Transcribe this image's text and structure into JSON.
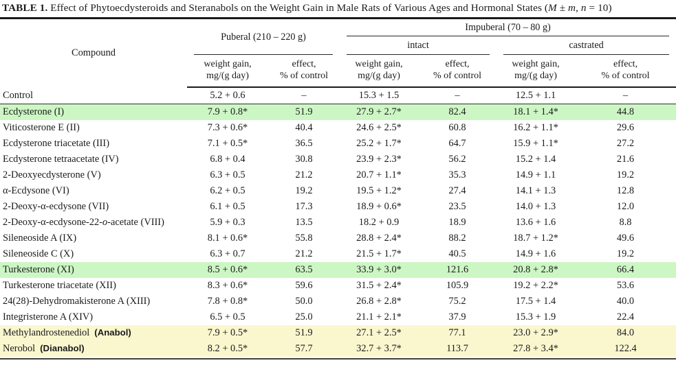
{
  "caption": {
    "label": "TABLE 1.",
    "parts": [
      "Effect of Phytoecdysteroids and Steranabols on the Weight Gain in Male Rats of Various Ages and Hormonal States (",
      "M",
      " ± ",
      "m",
      ", ",
      "n",
      " = 10)"
    ]
  },
  "colors": {
    "highlight_green": "#cdf6c5",
    "highlight_yellow": "#faf7cf",
    "rule": "#191919"
  },
  "table": {
    "headers": {
      "compound": "Compound",
      "puberal": "Puberal (210 – 220 g)",
      "impuberal": "Impuberal (70 – 80 g)",
      "intact": "intact",
      "castrated": "castrated",
      "wg1": "weight gain,",
      "wg2": "mg/(g day)",
      "eff1": "effect,",
      "eff2": "% of control"
    },
    "rows": [
      {
        "name": [
          {
            "t": "Control",
            "s": "p"
          }
        ],
        "values": [
          "5.2 + 0.6",
          "–",
          "15.3 + 1.5",
          "–",
          "12.5 + 1.1",
          "–"
        ],
        "highlight": null,
        "rule_below": true
      },
      {
        "name": [
          {
            "t": "Ecdysterone (I)",
            "s": "p"
          }
        ],
        "values": [
          "7.9 + 0.8*",
          "51.9",
          "27.9 + 2.7*",
          "82.4",
          "18.1 + 1.4*",
          "44.8"
        ],
        "highlight": "green",
        "rule_below": false
      },
      {
        "name": [
          {
            "t": "Viticosterone E (II)",
            "s": "p"
          }
        ],
        "values": [
          "7.3 + 0.6*",
          "40.4",
          "24.6 + 2.5*",
          "60.8",
          "16.2 + 1.1*",
          "29.6"
        ],
        "highlight": null,
        "rule_below": false
      },
      {
        "name": [
          {
            "t": "Ecdysterone triacetate (III)",
            "s": "p"
          }
        ],
        "values": [
          "7.1 + 0.5*",
          "36.5",
          "25.2 + 1.7*",
          "64.7",
          "15.9 + 1.1*",
          "27.2"
        ],
        "highlight": null,
        "rule_below": false
      },
      {
        "name": [
          {
            "t": "Ecdysterone tetraacetate (IV)",
            "s": "p"
          }
        ],
        "values": [
          "6.8 + 0.4",
          "30.8",
          "23.9 + 2.3*",
          "56.2",
          "15.2 + 1.4",
          "21.6"
        ],
        "highlight": null,
        "rule_below": false
      },
      {
        "name": [
          {
            "t": "2-Deoxyecdysterone (V)",
            "s": "p"
          }
        ],
        "values": [
          "6.3 + 0.5",
          "21.2",
          "20.7 + 1.1*",
          "35.3",
          "14.9 + 1.1",
          "19.2"
        ],
        "highlight": null,
        "rule_below": false
      },
      {
        "name": [
          {
            "t": "α-Ecdysone (VI)",
            "s": "p"
          }
        ],
        "values": [
          "6.2 + 0.5",
          "19.2",
          "19.5 + 1.2*",
          "27.4",
          "14.1 + 1.3",
          "12.8"
        ],
        "highlight": null,
        "rule_below": false
      },
      {
        "name": [
          {
            "t": "2-Deoxy-α-ecdysone (VII)",
            "s": "p"
          }
        ],
        "values": [
          "6.1 + 0.5",
          "17.3",
          "18.9 + 0.6*",
          "23.5",
          "14.0 + 1.3",
          "12.0"
        ],
        "highlight": null,
        "rule_below": false
      },
      {
        "name": [
          {
            "t": "2-Deoxy-α-ecdysone-22-",
            "s": "p"
          },
          {
            "t": "o",
            "s": "i"
          },
          {
            "t": "-acetate (VIII)",
            "s": "p"
          }
        ],
        "values": [
          "5.9 + 0.3",
          "13.5",
          "18.2 + 0.9",
          "18.9",
          "13.6 + 1.6",
          "8.8"
        ],
        "highlight": null,
        "rule_below": false
      },
      {
        "name": [
          {
            "t": "Sileneoside A (IX)",
            "s": "p"
          }
        ],
        "values": [
          "8.1 + 0.6*",
          "55.8",
          "28.8 + 2.4*",
          "88.2",
          "18.7 + 1.2*",
          "49.6"
        ],
        "highlight": null,
        "rule_below": false
      },
      {
        "name": [
          {
            "t": "Sileneoside C (X)",
            "s": "p"
          }
        ],
        "values": [
          "6.3 + 0.7",
          "21.2",
          "21.5 + 1.7*",
          "40.5",
          "14.9 + 1.6",
          "19.2"
        ],
        "highlight": null,
        "rule_below": false
      },
      {
        "name": [
          {
            "t": "Turkesterone (XI)",
            "s": "p"
          }
        ],
        "values": [
          "8.5 + 0.6*",
          "63.5",
          "33.9 + 3.0*",
          "121.6",
          "20.8 + 2.8*",
          "66.4"
        ],
        "highlight": "green",
        "rule_below": false
      },
      {
        "name": [
          {
            "t": "Turkesterone triacetate (XII)",
            "s": "p"
          }
        ],
        "values": [
          "8.3 + 0.6*",
          "59.6",
          "31.5 + 2.4*",
          "105.9",
          "19.2 + 2.2*",
          "53.6"
        ],
        "highlight": null,
        "rule_below": false
      },
      {
        "name": [
          {
            "t": "24(28)-Dehydromakisterone A (XIII)",
            "s": "p"
          }
        ],
        "values": [
          "7.8 + 0.8*",
          "50.0",
          "26.8 + 2.8*",
          "75.2",
          "17.5 + 1.4",
          "40.0"
        ],
        "highlight": null,
        "rule_below": false
      },
      {
        "name": [
          {
            "t": "Integristerone A (XIV)",
            "s": "p"
          }
        ],
        "values": [
          "6.5 + 0.5",
          "25.0",
          "21.1 + 2.1*",
          "37.9",
          "15.3 + 1.9",
          "22.4"
        ],
        "highlight": null,
        "rule_below": false
      },
      {
        "name": [
          {
            "t": "Methylandrostenediol",
            "s": "p"
          },
          {
            "t": "(Anabol)",
            "s": "b"
          }
        ],
        "values": [
          "7.9 + 0.5*",
          "51.9",
          "27.1 + 2.5*",
          "77.1",
          "23.0 + 2.9*",
          "84.0"
        ],
        "highlight": "yellow",
        "rule_below": false
      },
      {
        "name": [
          {
            "t": "Nerobol",
            "s": "p"
          },
          {
            "t": "(Dianabol)",
            "s": "b"
          }
        ],
        "values": [
          "8.2 + 0.5*",
          "57.7",
          "32.7 + 3.7*",
          "113.7",
          "27.8 + 3.4*",
          "122.4"
        ],
        "highlight": "yellow",
        "rule_below": false
      }
    ]
  }
}
